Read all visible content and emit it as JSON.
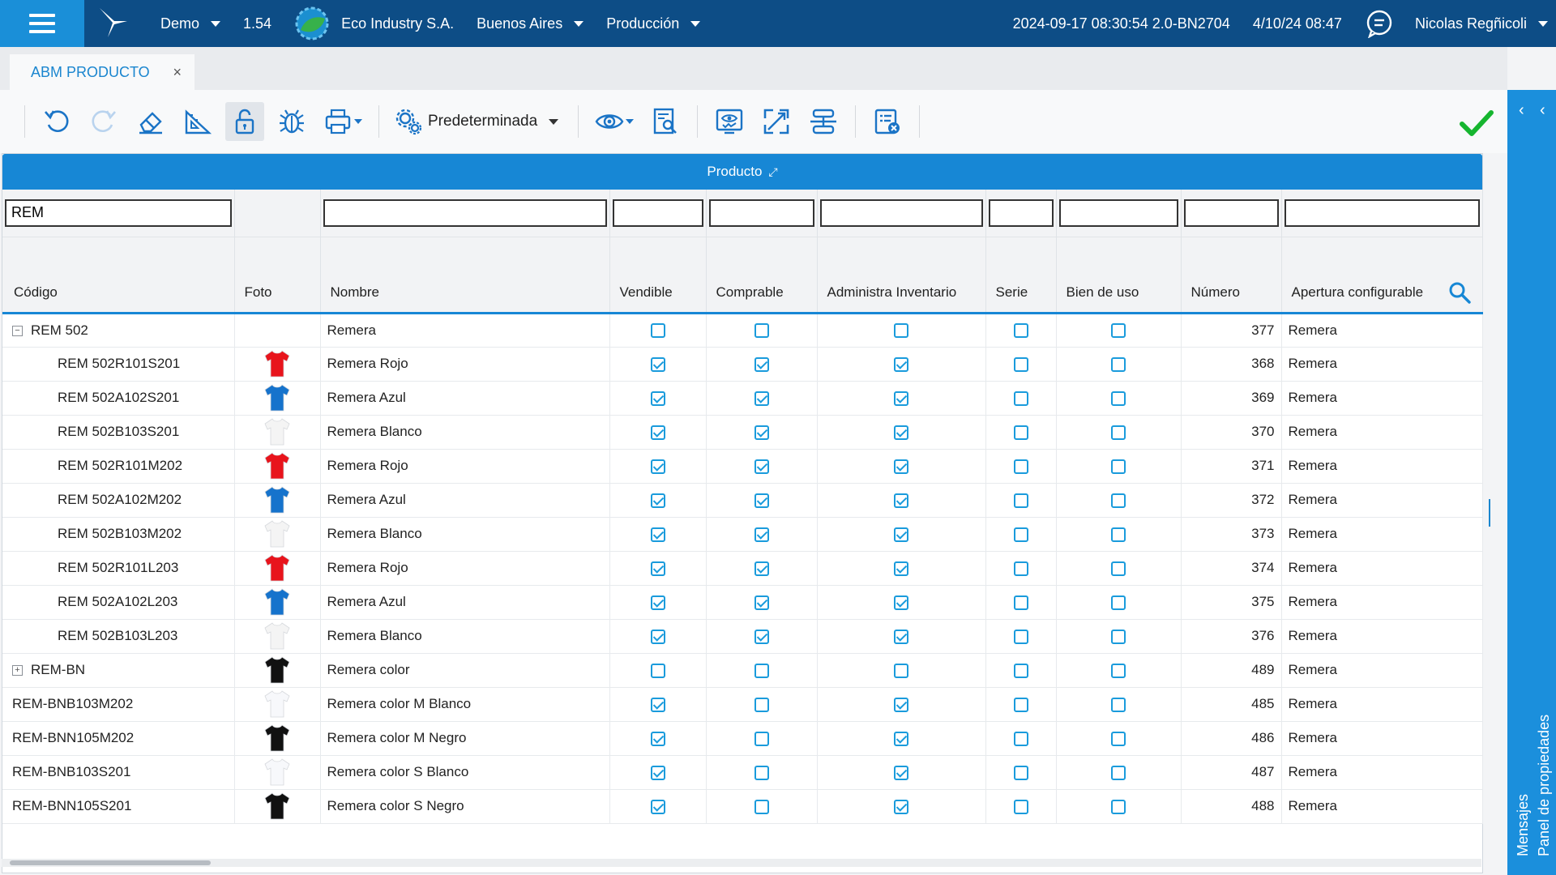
{
  "topbar": {
    "env": "Demo",
    "version": "1.54",
    "company": "Eco Industry S.A.",
    "city": "Buenos Aires",
    "module": "Producción",
    "build": "2024-09-17 08:30:54 2.0-BN2704",
    "datetime": "4/10/24 08:47",
    "user": "Nicolas Regñicoli"
  },
  "tabs": [
    {
      "label": "ABM PRODUCTO",
      "close": "×"
    }
  ],
  "toolbar": {
    "preset_label": "Predeterminada",
    "icons": [
      "undo-icon",
      "redo-icon",
      "eraser-icon",
      "ruler-icon",
      "unlock-icon",
      "bug-icon",
      "printer-icon",
      "settings-gear-icon",
      "eye-icon",
      "document-search-icon",
      "monitor-check-icon",
      "expand-icon",
      "fit-height-icon",
      "clear-list-icon",
      "checkmark-icon"
    ]
  },
  "side_panel": {
    "label_properties": "Panel de propiedades",
    "label_messages": "Mensajes"
  },
  "grid": {
    "title": "Producto",
    "filters": {
      "codigo": "REM",
      "nombre": "",
      "vendible": "",
      "comprable": "",
      "inventario": "",
      "serie": "",
      "bien_uso": "",
      "numero": "",
      "apertura": ""
    },
    "columns": [
      "Código",
      "Foto",
      "Nombre",
      "Vendible",
      "Comprable",
      "Administra Inventario",
      "Serie",
      "Bien de uso",
      "Número",
      "Apertura configurable"
    ],
    "rows": [
      {
        "code": "REM 502",
        "level": "root",
        "tree": "−",
        "color": "",
        "name": "Remera",
        "vendible": false,
        "comprable": false,
        "inventario": false,
        "serie": false,
        "bien_uso": false,
        "numero": "377",
        "apertura": "Remera"
      },
      {
        "code": "REM 502R101S201",
        "level": "child",
        "tree": "",
        "color": "#e8141c",
        "name": "Remera Rojo",
        "vendible": true,
        "comprable": true,
        "inventario": true,
        "serie": false,
        "bien_uso": false,
        "numero": "368",
        "apertura": "Remera"
      },
      {
        "code": "REM 502A102S201",
        "level": "child",
        "tree": "",
        "color": "#1673cc",
        "name": "Remera Azul",
        "vendible": true,
        "comprable": true,
        "inventario": true,
        "serie": false,
        "bien_uso": false,
        "numero": "369",
        "apertura": "Remera"
      },
      {
        "code": "REM 502B103S201",
        "level": "child",
        "tree": "",
        "color": "#f4f4f4",
        "name": "Remera Blanco",
        "vendible": true,
        "comprable": true,
        "inventario": true,
        "serie": false,
        "bien_uso": false,
        "numero": "370",
        "apertura": "Remera"
      },
      {
        "code": "REM 502R101M202",
        "level": "child",
        "tree": "",
        "color": "#e8141c",
        "name": "Remera Rojo",
        "vendible": true,
        "comprable": true,
        "inventario": true,
        "serie": false,
        "bien_uso": false,
        "numero": "371",
        "apertura": "Remera"
      },
      {
        "code": "REM 502A102M202",
        "level": "child",
        "tree": "",
        "color": "#1673cc",
        "name": "Remera Azul",
        "vendible": true,
        "comprable": true,
        "inventario": true,
        "serie": false,
        "bien_uso": false,
        "numero": "372",
        "apertura": "Remera"
      },
      {
        "code": "REM 502B103M202",
        "level": "child",
        "tree": "",
        "color": "#f4f4f4",
        "name": "Remera Blanco",
        "vendible": true,
        "comprable": true,
        "inventario": true,
        "serie": false,
        "bien_uso": false,
        "numero": "373",
        "apertura": "Remera"
      },
      {
        "code": "REM 502R101L203",
        "level": "child",
        "tree": "",
        "color": "#e8141c",
        "name": "Remera Rojo",
        "vendible": true,
        "comprable": true,
        "inventario": true,
        "serie": false,
        "bien_uso": false,
        "numero": "374",
        "apertura": "Remera"
      },
      {
        "code": "REM 502A102L203",
        "level": "child",
        "tree": "",
        "color": "#1673cc",
        "name": "Remera Azul",
        "vendible": true,
        "comprable": true,
        "inventario": true,
        "serie": false,
        "bien_uso": false,
        "numero": "375",
        "apertura": "Remera"
      },
      {
        "code": "REM 502B103L203",
        "level": "child",
        "tree": "",
        "color": "#f4f4f4",
        "name": "Remera Blanco",
        "vendible": true,
        "comprable": true,
        "inventario": true,
        "serie": false,
        "bien_uso": false,
        "numero": "376",
        "apertura": "Remera"
      },
      {
        "code": "REM-BN",
        "level": "root",
        "tree": "+",
        "color": "#111111",
        "name": "Remera color",
        "vendible": false,
        "comprable": false,
        "inventario": false,
        "serie": false,
        "bien_uso": false,
        "numero": "489",
        "apertura": "Remera"
      },
      {
        "code": "REM-BNB103M202",
        "level": "top",
        "tree": "",
        "color": "#f7f8fb",
        "name": "Remera color M Blanco",
        "vendible": true,
        "comprable": false,
        "inventario": true,
        "serie": false,
        "bien_uso": false,
        "numero": "485",
        "apertura": "Remera"
      },
      {
        "code": "REM-BNN105M202",
        "level": "top",
        "tree": "",
        "color": "#111111",
        "name": "Remera color M Negro",
        "vendible": true,
        "comprable": false,
        "inventario": true,
        "serie": false,
        "bien_uso": false,
        "numero": "486",
        "apertura": "Remera"
      },
      {
        "code": "REM-BNB103S201",
        "level": "top",
        "tree": "",
        "color": "#f7f8fb",
        "name": "Remera color S Blanco",
        "vendible": true,
        "comprable": false,
        "inventario": true,
        "serie": false,
        "bien_uso": false,
        "numero": "487",
        "apertura": "Remera"
      },
      {
        "code": "REM-BNN105S201",
        "level": "top",
        "tree": "",
        "color": "#111111",
        "name": "Remera color S Negro",
        "vendible": true,
        "comprable": false,
        "inventario": true,
        "serie": false,
        "bien_uso": false,
        "numero": "488",
        "apertura": "Remera"
      }
    ]
  }
}
